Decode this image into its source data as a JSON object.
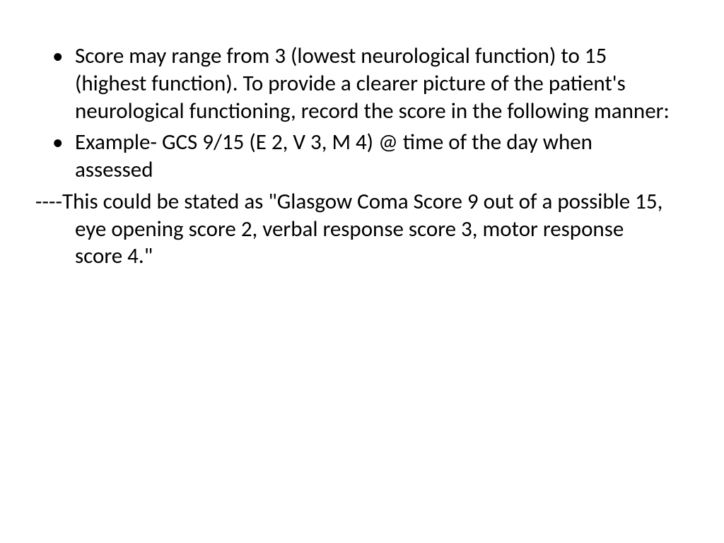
{
  "slide": {
    "bullets": [
      "Score may range from 3 (lowest neurological function) to 15 (highest function). To provide a clearer picture of the patient's neurological functioning, record the score in the following manner:",
      "Example-  GCS  9/15 (E 2, V 3, M 4) @ time of the day when assessed"
    ],
    "followup": "----This could  be stated as \"Glasgow Coma Score 9 out of a possible 15, eye opening score 2, verbal response score 3, motor response score 4.\""
  },
  "styling": {
    "background_color": "#ffffff",
    "text_color": "#000000",
    "font_family": "Calibri",
    "font_size_pt": 28,
    "line_height": 1.25,
    "bullet_char": "•"
  }
}
